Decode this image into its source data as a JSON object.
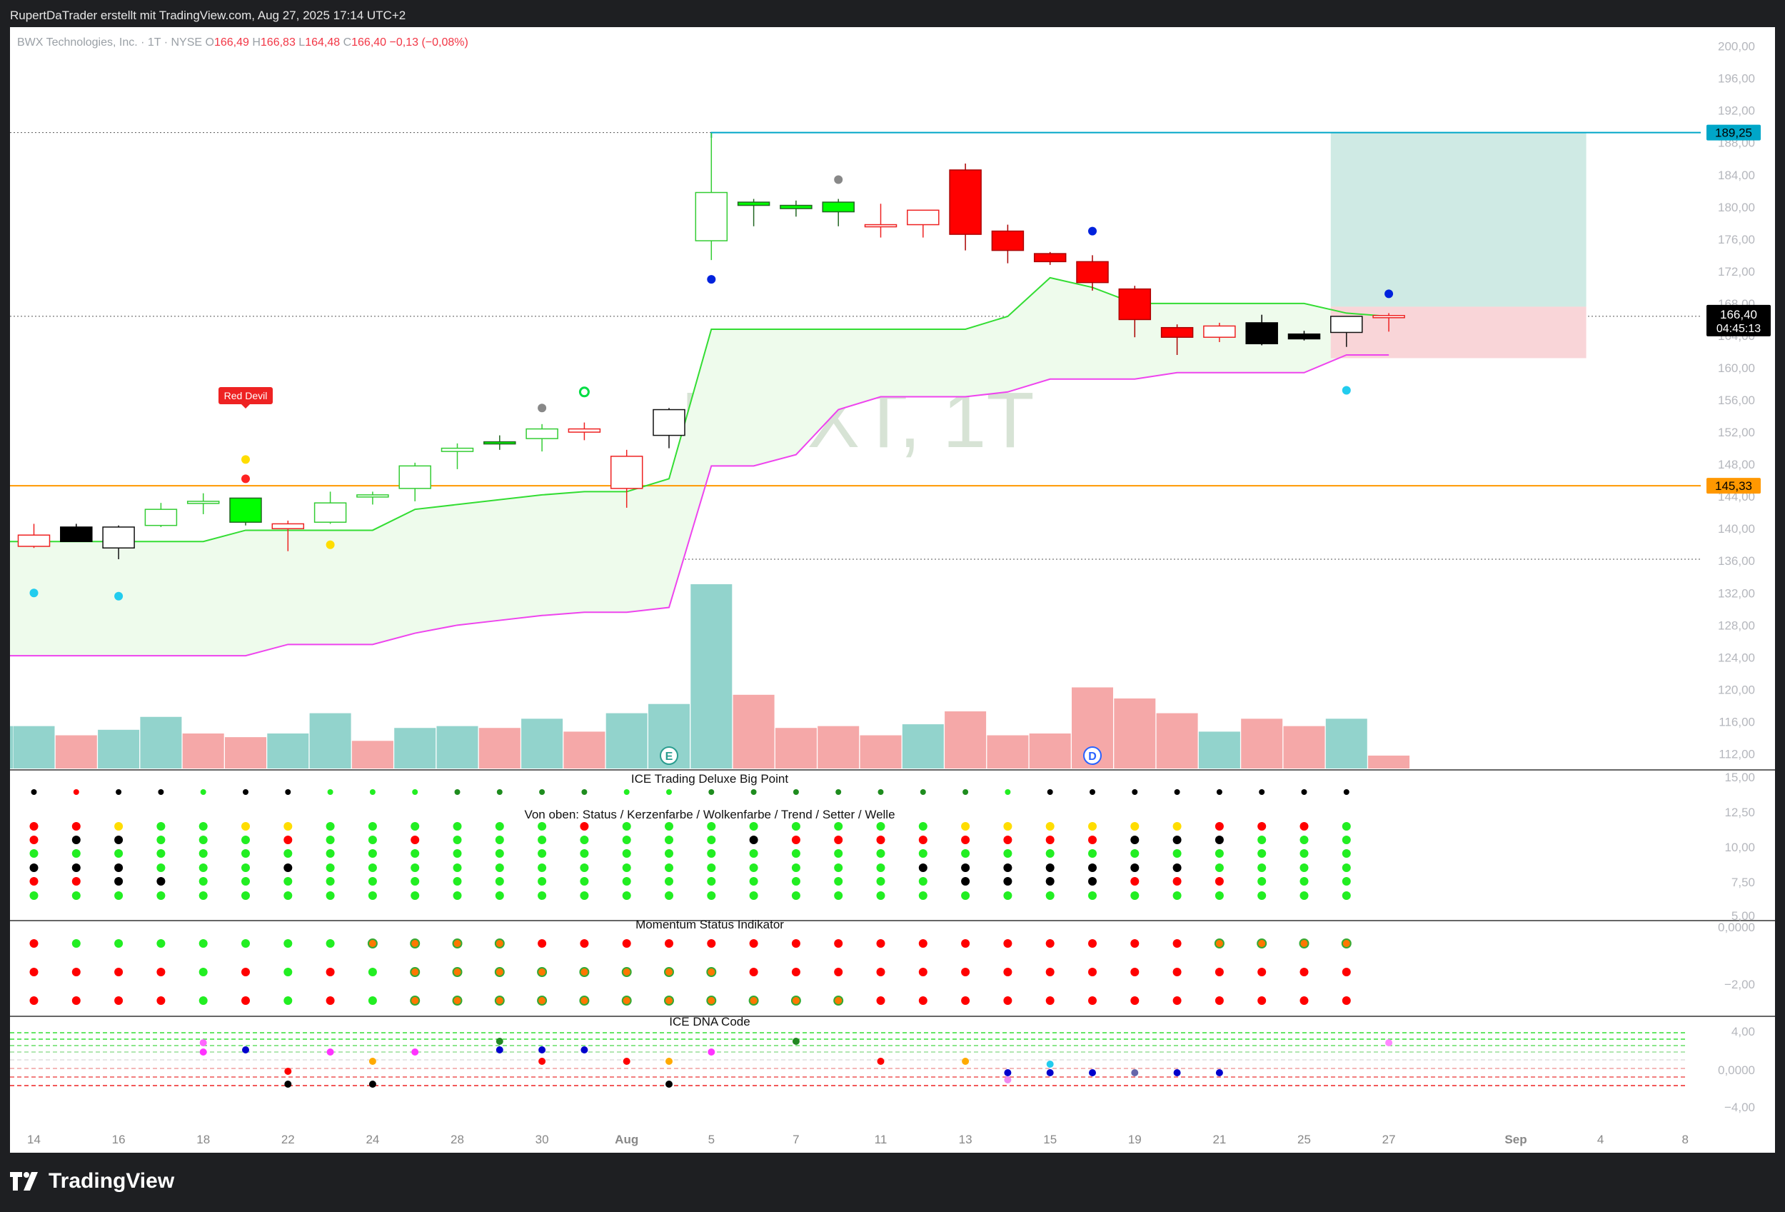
{
  "header": {
    "attribution": "RupertDaTrader erstellt mit TradingView.com, Aug 27, 2025 17:14 UTC+2"
  },
  "branding": {
    "logo_text": "TradingView",
    "watermark": "BWXT, 1T"
  },
  "colors": {
    "up": "#00ff00",
    "down": "#ff0000",
    "cloud_line": "#33dd33",
    "lower_band": "#ee44ee",
    "target_line": "#00a6c8",
    "support_line": "#ff9800",
    "volume_up": "#92d3cc",
    "volume_down": "#f5a8a8"
  },
  "chart_data": {
    "type": "candlestick",
    "symbol": "BWX Technologies, Inc. · 1T · NYSE",
    "ohlc_legend": {
      "o_label": "O",
      "o": "166,49",
      "h_label": "H",
      "h": "166,83",
      "l_label": "L",
      "l": "164,48",
      "c_label": "C",
      "c": "166,40",
      "change": "−0,13 (−0,08%)"
    },
    "y_ticks": [
      "200,00",
      "196,00",
      "192,00",
      "188,00",
      "184,00",
      "180,00",
      "176,00",
      "172,00",
      "168,00",
      "164,00",
      "160,00",
      "156,00",
      "152,00",
      "148,00",
      "144,00",
      "140,00",
      "136,00",
      "132,00",
      "128,00",
      "124,00",
      "120,00",
      "116,00",
      "112,00"
    ],
    "ylim": [
      110,
      202
    ],
    "x_ticks": [
      {
        "i": 0,
        "label": "14"
      },
      {
        "i": 2,
        "label": "16"
      },
      {
        "i": 4,
        "label": "18"
      },
      {
        "i": 6,
        "label": "22"
      },
      {
        "i": 8,
        "label": "24"
      },
      {
        "i": 10,
        "label": "28"
      },
      {
        "i": 12,
        "label": "30"
      },
      {
        "i": 14,
        "label": "Aug"
      },
      {
        "i": 16,
        "label": "5"
      },
      {
        "i": 18,
        "label": "7"
      },
      {
        "i": 20,
        "label": "11"
      },
      {
        "i": 22,
        "label": "13"
      },
      {
        "i": 24,
        "label": "15"
      },
      {
        "i": 26,
        "label": "19"
      },
      {
        "i": 28,
        "label": "21"
      },
      {
        "i": 30,
        "label": "25"
      },
      {
        "i": 32,
        "label": "27"
      },
      {
        "i": 35,
        "label": "Sep"
      },
      {
        "i": 37,
        "label": "4"
      },
      {
        "i": 39,
        "label": "8"
      }
    ],
    "candles": [
      {
        "o": 139.2,
        "h": 140.6,
        "l": 137.6,
        "c": 137.8,
        "fill": "hollow_red"
      },
      {
        "o": 140.2,
        "h": 140.6,
        "l": 138.4,
        "c": 138.4,
        "fill": "black"
      },
      {
        "o": 137.6,
        "h": 140.4,
        "l": 136.2,
        "c": 140.2,
        "fill": "hollow_black"
      },
      {
        "o": 140.4,
        "h": 143.2,
        "l": 140.2,
        "c": 142.4,
        "fill": "hollow_green"
      },
      {
        "o": 143.2,
        "h": 144.4,
        "l": 141.8,
        "c": 143.4,
        "fill": "hollow_green"
      },
      {
        "o": 140.8,
        "h": 143.8,
        "l": 140.4,
        "c": 143.8,
        "fill": "green"
      },
      {
        "o": 140.6,
        "h": 141.0,
        "l": 137.2,
        "c": 140.0,
        "fill": "hollow_red"
      },
      {
        "o": 140.8,
        "h": 144.6,
        "l": 140.6,
        "c": 143.2,
        "fill": "hollow_green"
      },
      {
        "o": 144.0,
        "h": 144.6,
        "l": 143.0,
        "c": 144.2,
        "fill": "hollow_green"
      },
      {
        "o": 145.0,
        "h": 148.2,
        "l": 143.4,
        "c": 147.8,
        "fill": "hollow_green"
      },
      {
        "o": 149.6,
        "h": 150.6,
        "l": 147.4,
        "c": 150.0,
        "fill": "hollow_green"
      },
      {
        "o": 150.6,
        "h": 151.6,
        "l": 149.8,
        "c": 150.8,
        "fill": "green"
      },
      {
        "o": 151.2,
        "h": 153.0,
        "l": 149.6,
        "c": 152.4,
        "fill": "hollow_green"
      },
      {
        "o": 152.0,
        "h": 153.2,
        "l": 151.0,
        "c": 152.4,
        "fill": "hollow_red"
      },
      {
        "o": 149.0,
        "h": 149.8,
        "l": 142.6,
        "c": 145.0,
        "fill": "hollow_red"
      },
      {
        "o": 151.6,
        "h": 155.0,
        "l": 150.0,
        "c": 154.8,
        "fill": "hollow_black"
      },
      {
        "o": 175.8,
        "h": 189.2,
        "l": 173.4,
        "c": 181.8,
        "fill": "hollow_green"
      },
      {
        "o": 180.2,
        "h": 181.0,
        "l": 177.6,
        "c": 180.6,
        "fill": "green"
      },
      {
        "o": 179.8,
        "h": 180.8,
        "l": 178.8,
        "c": 180.2,
        "fill": "green"
      },
      {
        "o": 179.4,
        "h": 181.0,
        "l": 177.6,
        "c": 180.6,
        "fill": "green"
      },
      {
        "o": 177.8,
        "h": 180.4,
        "l": 176.2,
        "c": 177.8,
        "fill": "hollow_red"
      },
      {
        "o": 179.6,
        "h": 179.6,
        "l": 176.2,
        "c": 177.8,
        "fill": "hollow_red"
      },
      {
        "o": 184.6,
        "h": 185.4,
        "l": 174.6,
        "c": 176.6,
        "fill": "red"
      },
      {
        "o": 177.0,
        "h": 177.8,
        "l": 173.0,
        "c": 174.6,
        "fill": "red"
      },
      {
        "o": 174.2,
        "h": 174.4,
        "l": 172.8,
        "c": 173.2,
        "fill": "red"
      },
      {
        "o": 173.2,
        "h": 174.0,
        "l": 169.6,
        "c": 170.6,
        "fill": "red"
      },
      {
        "o": 169.8,
        "h": 170.2,
        "l": 163.8,
        "c": 166.0,
        "fill": "red"
      },
      {
        "o": 165.0,
        "h": 165.4,
        "l": 161.6,
        "c": 163.8,
        "fill": "red"
      },
      {
        "o": 163.8,
        "h": 165.6,
        "l": 163.2,
        "c": 165.2,
        "fill": "hollow_red"
      },
      {
        "o": 165.6,
        "h": 166.6,
        "l": 162.8,
        "c": 163.0,
        "fill": "black"
      },
      {
        "o": 164.2,
        "h": 164.6,
        "l": 163.4,
        "c": 163.6,
        "fill": "black"
      },
      {
        "o": 164.4,
        "h": 166.4,
        "l": 162.6,
        "c": 166.4,
        "fill": "hollow_black"
      },
      {
        "o": 166.5,
        "h": 166.8,
        "l": 164.5,
        "c": 166.4,
        "fill": "hollow_red"
      }
    ],
    "cloud_upper": [
      138.4,
      138.4,
      138.4,
      138.4,
      138.4,
      139.8,
      139.8,
      139.8,
      139.8,
      142.4,
      143.0,
      143.6,
      144.2,
      144.6,
      144.6,
      146.2,
      164.8,
      164.8,
      164.8,
      164.8,
      164.8,
      164.8,
      164.8,
      166.4,
      171.2,
      170.0,
      168.0,
      168.0,
      168.0,
      168.0,
      168.0,
      166.8,
      166.4
    ],
    "lower_band": [
      124.2,
      124.2,
      124.2,
      124.2,
      124.2,
      124.2,
      125.6,
      125.6,
      125.6,
      127.0,
      128.0,
      128.6,
      129.2,
      129.6,
      129.6,
      130.2,
      147.8,
      147.8,
      149.2,
      154.8,
      156.4,
      156.4,
      156.4,
      157.0,
      158.6,
      158.6,
      158.6,
      159.4,
      159.4,
      159.4,
      159.4,
      161.6,
      161.6
    ],
    "volume": [
      {
        "v": 0.23,
        "up": true
      },
      {
        "v": 0.18,
        "up": false
      },
      {
        "v": 0.21,
        "up": true
      },
      {
        "v": 0.28,
        "up": true
      },
      {
        "v": 0.19,
        "up": false
      },
      {
        "v": 0.17,
        "up": false
      },
      {
        "v": 0.19,
        "up": true
      },
      {
        "v": 0.3,
        "up": true
      },
      {
        "v": 0.15,
        "up": false
      },
      {
        "v": 0.22,
        "up": true
      },
      {
        "v": 0.23,
        "up": true
      },
      {
        "v": 0.22,
        "up": false
      },
      {
        "v": 0.27,
        "up": true
      },
      {
        "v": 0.2,
        "up": false
      },
      {
        "v": 0.3,
        "up": true
      },
      {
        "v": 0.35,
        "up": true
      },
      {
        "v": 1.0,
        "up": true
      },
      {
        "v": 0.4,
        "up": false
      },
      {
        "v": 0.22,
        "up": false
      },
      {
        "v": 0.23,
        "up": false
      },
      {
        "v": 0.18,
        "up": false
      },
      {
        "v": 0.24,
        "up": true
      },
      {
        "v": 0.31,
        "up": false
      },
      {
        "v": 0.18,
        "up": false
      },
      {
        "v": 0.19,
        "up": false
      },
      {
        "v": 0.44,
        "up": false
      },
      {
        "v": 0.38,
        "up": false
      },
      {
        "v": 0.3,
        "up": false
      },
      {
        "v": 0.2,
        "up": true
      },
      {
        "v": 0.27,
        "up": false
      },
      {
        "v": 0.23,
        "up": false
      },
      {
        "v": 0.27,
        "up": true
      },
      {
        "v": 0.07,
        "up": false
      }
    ],
    "target_level": {
      "value": 189.25,
      "label": "189,25"
    },
    "support_level": {
      "value": 145.33,
      "label": "145,33"
    },
    "dotted_levels": [
      189.25,
      166.4,
      136.2
    ],
    "price_badge": {
      "value": 166.4,
      "label": "166,40",
      "countdown": "04:45:13"
    },
    "position_box": {
      "from_i": 31,
      "to_i": 37,
      "entry": 167.6,
      "target": 189.25,
      "stop": 161.2
    },
    "signal_label": {
      "i": 5,
      "text": "Red Devil"
    },
    "event_markers": [
      {
        "i": 15,
        "text": "E"
      },
      {
        "i": 25,
        "text": "D"
      }
    ],
    "big_point_markers": [
      {
        "i": 0,
        "price": 132.0,
        "color": "#22ccee"
      },
      {
        "i": 2,
        "price": 131.6,
        "color": "#22ccee"
      },
      {
        "i": 5,
        "price": 146.2,
        "color": "#ff2222"
      },
      {
        "i": 5,
        "price": 148.6,
        "color": "#ffdd00"
      },
      {
        "i": 7,
        "price": 138.0,
        "color": "#ffdd00"
      },
      {
        "i": 12,
        "price": 155.0,
        "color": "#888888"
      },
      {
        "i": 13,
        "price": 157.0,
        "color": "#00dd44",
        "ring": true
      },
      {
        "i": 19,
        "price": 183.4,
        "color": "#888888"
      },
      {
        "i": 16,
        "price": 171.0,
        "color": "#0022dd"
      },
      {
        "i": 25,
        "price": 177.0,
        "color": "#0022dd"
      },
      {
        "i": 32,
        "price": 169.2,
        "color": "#0022dd"
      },
      {
        "i": 31,
        "price": 157.2,
        "color": "#22ccee"
      }
    ],
    "indicator_big_point": {
      "title": "ICE Trading Deluxe Big Point",
      "subtitle": "Von oben: Status / Kerzenfarbe / Wolkenfarbe / Trend / Setter / Welle",
      "y_ticks": [
        "15,00",
        "12,50",
        "10,00",
        "7,50",
        "5,00"
      ],
      "top_row": [
        "k",
        "r",
        "k",
        "k",
        "g",
        "k",
        "k",
        "g",
        "g",
        "g",
        "d",
        "d",
        "d",
        "d",
        "g",
        "g",
        "d",
        "d",
        "d",
        "d",
        "d",
        "d",
        "d",
        "g",
        "k",
        "k",
        "k",
        "k",
        "k",
        "k",
        "k",
        "k"
      ],
      "grid": [
        "rryggyyggggggrggggggggyyyyyyrrr",
        "rkkgggrggrgggggggkrrrrrrrrkkk",
        "gggggggggggggggggggggggggggggg",
        "kkkgggkggggggggggggggkkkkkkk",
        "rrkkggggggggggggggggggkkkkrrr",
        "ggggggggggggggggggggggggggggggg"
      ]
    },
    "indicator_momentum": {
      "title": "Momentum Status Indikator",
      "y_ticks": [
        "0,0000",
        "−2,00"
      ],
      "rows": [
        "rgggggggDDDDrrrrrrrrrrrrrrrrDDDDg",
        "rrrrgrgrgDDDDDDDDrrrrrrrrrrrrrrrr",
        "rrrrgrgrgDDDDDDDDDDDrrrrrrrrrrrrr"
      ]
    },
    "indicator_dna": {
      "title": "ICE DNA Code",
      "y_ticks": [
        "4,00",
        "0,0000",
        "−4,00"
      ]
    }
  }
}
